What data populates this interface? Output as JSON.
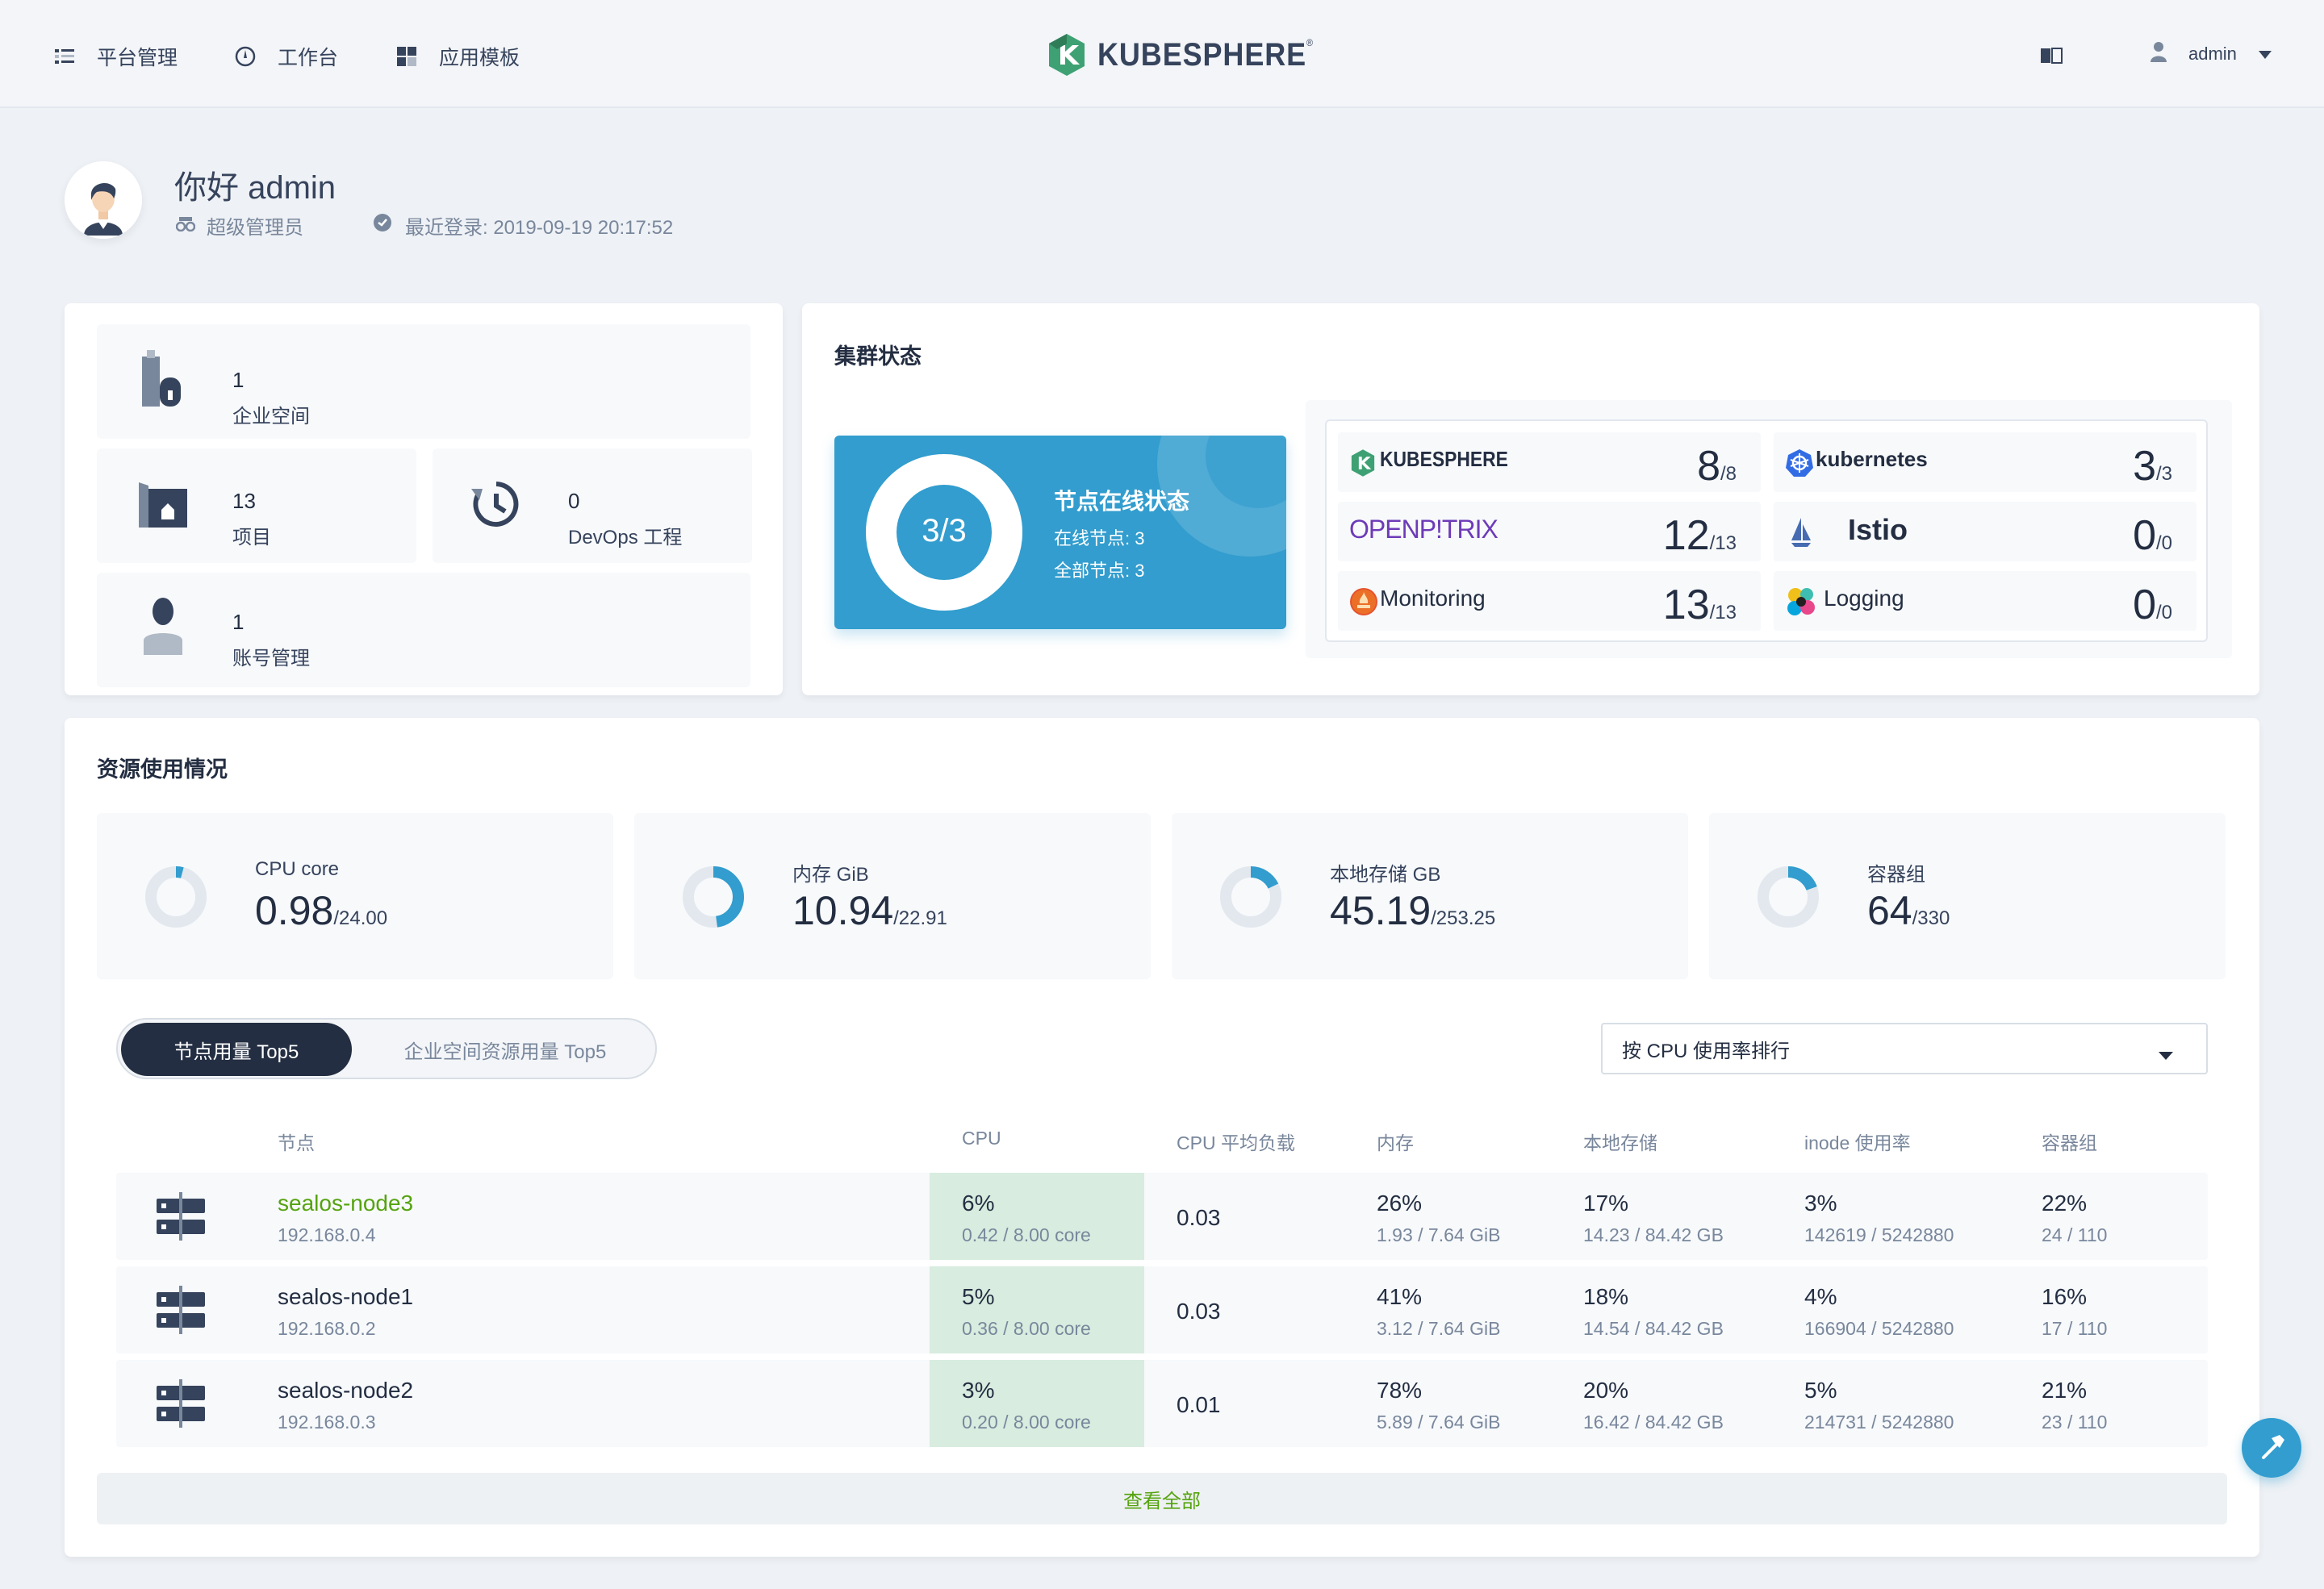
{
  "nav": {
    "platform": "平台管理",
    "workbench": "工作台",
    "templates": "应用模板",
    "user": "admin",
    "logo": "KUBESPHERE"
  },
  "greeting": {
    "title": "你好 admin",
    "role": "超级管理员",
    "last_login": "最近登录: 2019-09-19 20:17:52"
  },
  "stats": [
    {
      "icon": "workspace-icon",
      "value": "1",
      "label": "企业空间"
    },
    {
      "icon": "project-icon",
      "value": "13",
      "label": "项目"
    },
    {
      "icon": "devops-icon",
      "value": "0",
      "label": "DevOps 工程"
    },
    {
      "icon": "account-icon",
      "value": "1",
      "label": "账号管理"
    }
  ],
  "cluster": {
    "title": "集群状态",
    "ratio": "3/3",
    "online_fraction": 1.0,
    "panel_title": "节点在线状态",
    "online": "在线节点: 3",
    "total": "全部节点: 3"
  },
  "components": [
    {
      "name": "KUBESPHERE",
      "value": "8",
      "total": "/8"
    },
    {
      "name": "kubernetes",
      "value": "3",
      "total": "/3"
    },
    {
      "name": "OPENP!TRIX",
      "value": "12",
      "total": "/13"
    },
    {
      "name": "Istio",
      "value": "0",
      "total": "/0"
    },
    {
      "name": "Monitoring",
      "value": "13",
      "total": "/13"
    },
    {
      "name": "Logging",
      "value": "0",
      "total": "/0"
    }
  ],
  "resources": {
    "title": "资源使用情况",
    "items": [
      {
        "label": "CPU core",
        "value": "0.98",
        "total": "/24.00",
        "fraction": 0.041
      },
      {
        "label": "内存 GiB",
        "value": "10.94",
        "total": "/22.91",
        "fraction": 0.478
      },
      {
        "label": "本地存储 GB",
        "value": "45.19",
        "total": "/253.25",
        "fraction": 0.178
      },
      {
        "label": "容器组",
        "value": "64",
        "total": "/330",
        "fraction": 0.194
      }
    ]
  },
  "tabs": {
    "active": "节点用量 Top5",
    "inactive": "企业空间资源用量 Top5"
  },
  "sort_select": "按 CPU 使用率排行",
  "table": {
    "headers": {
      "node": "节点",
      "cpu": "CPU",
      "load": "CPU 平均负载",
      "memory": "内存",
      "storage": "本地存储",
      "inode": "inode 使用率",
      "pods": "容器组"
    },
    "rows": [
      {
        "name": "sealos-node3",
        "ip": "192.168.0.4",
        "cpu": "6%",
        "cpu_sub": "0.42 / 8.00 core",
        "load": "0.03",
        "mem": "26%",
        "mem_sub": "1.93 / 7.64 GiB",
        "storage": "17%",
        "storage_sub": "14.23 / 84.42 GB",
        "inode": "3%",
        "inode_sub": "142619 / 5242880",
        "pods": "22%",
        "pods_sub": "24 / 110"
      },
      {
        "name": "sealos-node1",
        "ip": "192.168.0.2",
        "cpu": "5%",
        "cpu_sub": "0.36 / 8.00 core",
        "load": "0.03",
        "mem": "41%",
        "mem_sub": "3.12 / 7.64 GiB",
        "storage": "18%",
        "storage_sub": "14.54 / 84.42 GB",
        "inode": "4%",
        "inode_sub": "166904 / 5242880",
        "pods": "16%",
        "pods_sub": "17 / 110"
      },
      {
        "name": "sealos-node2",
        "ip": "192.168.0.3",
        "cpu": "3%",
        "cpu_sub": "0.20 / 8.00 core",
        "load": "0.01",
        "mem": "78%",
        "mem_sub": "5.89 / 7.64 GiB",
        "storage": "20%",
        "storage_sub": "16.42 / 84.42 GB",
        "inode": "5%",
        "inode_sub": "214731 / 5242880",
        "pods": "21%",
        "pods_sub": "23 / 110"
      }
    ]
  },
  "view_all": "查看全部",
  "colors": {
    "accent": "#329dce",
    "link_green": "#55a30e",
    "dark": "#242e42",
    "cpu_highlight": "#d8ecdf"
  }
}
